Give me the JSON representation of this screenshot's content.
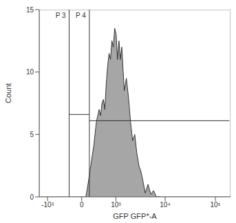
{
  "chart_data": {
    "type": "area",
    "x_label": "GFP GFP*-A",
    "y_label": "Count",
    "log": "x",
    "color": "#a6a6a6",
    "xlim": [
      -1500,
      200000
    ],
    "xticks": [
      {
        "value": -1000,
        "label": "-10³"
      },
      0,
      {
        "value": 1000,
        "label": "10³"
      },
      {
        "value": 10000,
        "label": "10⁴"
      },
      {
        "value": 100000,
        "label": "10⁵"
      }
    ],
    "ylim": [
      0,
      15
    ],
    "yticks": [
      0,
      5,
      10,
      15
    ],
    "x": [
      84,
      128,
      187,
      250,
      316,
      388,
      427,
      468,
      510,
      554,
      601,
      651,
      704,
      759,
      818,
      880,
      945,
      1014,
      1087,
      1165,
      1248,
      1337,
      1432,
      1506,
      1664,
      1837,
      2026,
      2236,
      2465,
      2718,
      2993,
      3300,
      3633,
      4003,
      4554,
      5180,
      5888,
      6690,
      8113
    ],
    "values": [
      0,
      1,
      2.5,
      4,
      6,
      7,
      6.5,
      7.5,
      7.8,
      7,
      9,
      10.5,
      11.5,
      11,
      12.5,
      12,
      13.5,
      13,
      11,
      12.5,
      11,
      12,
      10,
      8.5,
      9.5,
      8,
      6,
      4.5,
      5,
      3.5,
      2.5,
      2,
      1.2,
      0.3,
      1,
      0.2,
      0.5,
      0,
      0
    ],
    "gates": [
      {
        "label": "P 3",
        "x": [
          -266,
          157
        ],
        "y": 6.6
      },
      {
        "label": "P 4",
        "x": [
          157,
          190000
        ],
        "y": 6.1
      }
    ]
  }
}
